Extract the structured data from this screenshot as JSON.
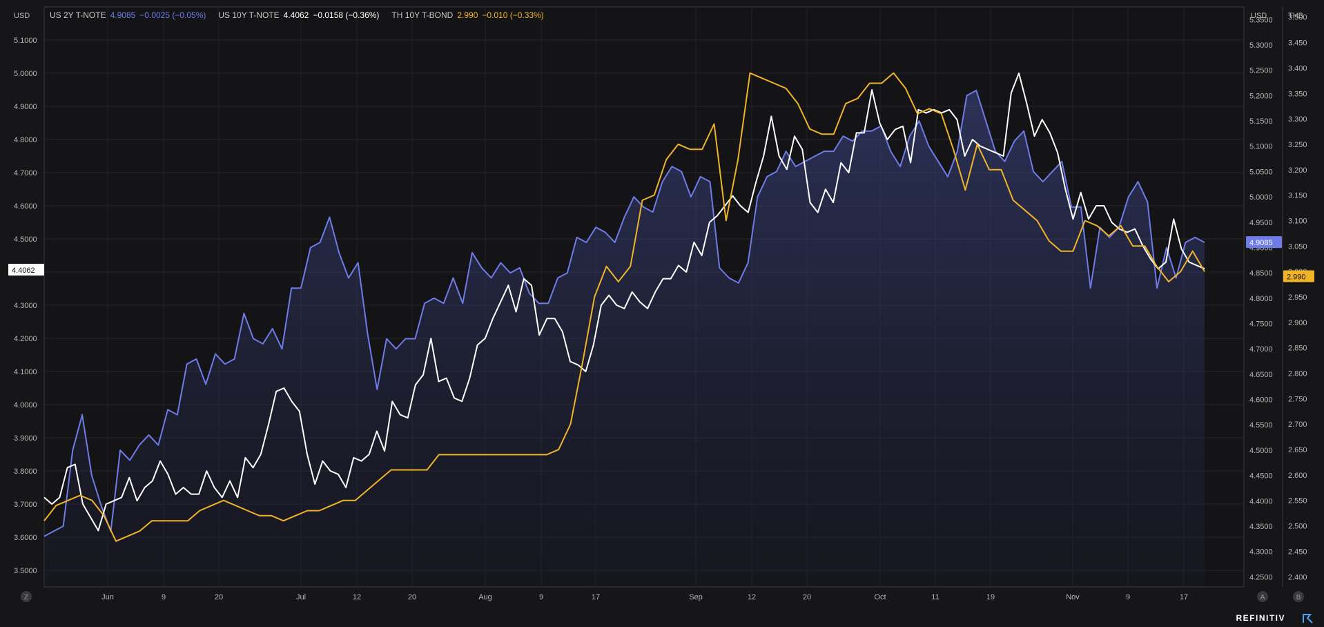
{
  "left_axis_unit": "USD",
  "right_axis_units": [
    "USD",
    "THB"
  ],
  "zoom_buttons": [
    "Z",
    "A",
    "B"
  ],
  "brand": "REFINITIV",
  "legend": [
    {
      "name": "US 2Y T-NOTE",
      "value": "4.9085",
      "change": "−0.0025 (−0.05%)",
      "color": "#6f7ce8"
    },
    {
      "name": "US 10Y T-NOTE",
      "value": "4.4062",
      "change": "−0.0158 (−0.36%)",
      "color": "#ffffff"
    },
    {
      "name": "TH 10Y T-BOND",
      "value": "2.990",
      "change": "−0.010 (−0.33%)",
      "color": "#f0b429"
    }
  ],
  "chart_data": {
    "type": "line",
    "x_labels": [
      "Jun",
      "9",
      "20",
      "Jul",
      "12",
      "20",
      "Aug",
      "9",
      "17",
      "Sep",
      "12",
      "20",
      "Oct",
      "11",
      "19",
      "Nov",
      "9",
      "17"
    ],
    "left_axis": {
      "unit": "USD",
      "ylim": [
        3.45,
        5.2
      ],
      "ticks": [
        "3.5000",
        "3.6000",
        "3.7000",
        "3.8000",
        "3.9000",
        "4.0000",
        "4.1000",
        "4.2000",
        "4.3000",
        "4.4000",
        "4.5000",
        "4.6000",
        "4.7000",
        "4.8000",
        "4.9000",
        "5.0000",
        "5.1000"
      ]
    },
    "right_axis_usd": {
      "unit": "USD",
      "ylim": [
        4.23,
        5.375
      ],
      "ticks": [
        "4.2500",
        "4.3000",
        "4.3500",
        "4.4000",
        "4.4500",
        "4.5000",
        "4.5500",
        "4.6000",
        "4.6500",
        "4.7000",
        "4.7500",
        "4.8000",
        "4.8500",
        "4.9000",
        "4.9500",
        "5.0000",
        "5.0500",
        "5.1000",
        "5.1500",
        "5.2000",
        "5.2500",
        "5.3000",
        "5.3500"
      ]
    },
    "right_axis_thb": {
      "unit": "THB",
      "ylim": [
        2.38,
        3.52
      ],
      "ticks": [
        "2.400",
        "2.450",
        "2.500",
        "2.550",
        "2.600",
        "2.650",
        "2.700",
        "2.750",
        "2.800",
        "2.850",
        "2.900",
        "2.950",
        "3.000",
        "3.050",
        "3.100",
        "3.150",
        "3.200",
        "3.250",
        "3.300",
        "3.350",
        "3.400",
        "3.450",
        "3.500"
      ]
    },
    "grid": true,
    "legend_position": "top-left",
    "series": [
      {
        "name": "US 2Y T-NOTE",
        "axis": "right_usd",
        "color": "#6f7ce8",
        "area": true,
        "last_label": "4.9085",
        "values": [
          4.33,
          4.34,
          4.35,
          4.5,
          4.57,
          4.45,
          4.39,
          4.34,
          4.5,
          4.48,
          4.51,
          4.53,
          4.51,
          4.58,
          4.57,
          4.67,
          4.68,
          4.63,
          4.69,
          4.67,
          4.68,
          4.77,
          4.72,
          4.71,
          4.74,
          4.7,
          4.82,
          4.82,
          4.9,
          4.91,
          4.96,
          4.89,
          4.84,
          4.87,
          4.73,
          4.62,
          4.72,
          4.7,
          4.72,
          4.72,
          4.79,
          4.8,
          4.79,
          4.84,
          4.79,
          4.89,
          4.86,
          4.84,
          4.87,
          4.85,
          4.86,
          4.81,
          4.79,
          4.79,
          4.84,
          4.85,
          4.92,
          4.91,
          4.94,
          4.93,
          4.91,
          4.96,
          5.0,
          4.98,
          4.97,
          5.03,
          5.06,
          5.05,
          5.0,
          5.04,
          5.03,
          4.86,
          4.84,
          4.83,
          4.87,
          5.0,
          5.04,
          5.05,
          5.09,
          5.06,
          5.07,
          5.08,
          5.09,
          5.09,
          5.12,
          5.11,
          5.13,
          5.13,
          5.14,
          5.09,
          5.06,
          5.12,
          5.15,
          5.1,
          5.07,
          5.04,
          5.09,
          5.2,
          5.21,
          5.15,
          5.09,
          5.07,
          5.11,
          5.13,
          5.05,
          5.03,
          5.05,
          5.07,
          4.98,
          4.98,
          4.82,
          4.94,
          4.92,
          4.94,
          5.0,
          5.03,
          4.99,
          4.82,
          4.9,
          4.84,
          4.91,
          4.92,
          4.91
        ]
      },
      {
        "name": "US 10Y T-NOTE",
        "axis": "left",
        "color": "#ffffff",
        "area": false,
        "last_label": "4.4062",
        "values": [
          3.72,
          3.7,
          3.72,
          3.81,
          3.82,
          3.7,
          3.66,
          3.62,
          3.7,
          3.71,
          3.72,
          3.78,
          3.71,
          3.75,
          3.77,
          3.83,
          3.79,
          3.73,
          3.75,
          3.73,
          3.73,
          3.8,
          3.75,
          3.72,
          3.77,
          3.72,
          3.84,
          3.81,
          3.85,
          3.94,
          4.04,
          4.05,
          4.01,
          3.98,
          3.85,
          3.76,
          3.83,
          3.8,
          3.79,
          3.75,
          3.84,
          3.83,
          3.85,
          3.92,
          3.86,
          4.01,
          3.97,
          3.96,
          4.06,
          4.09,
          4.2,
          4.07,
          4.08,
          4.02,
          4.01,
          4.08,
          4.18,
          4.2,
          4.26,
          4.31,
          4.36,
          4.28,
          4.38,
          4.36,
          4.21,
          4.26,
          4.26,
          4.22,
          4.13,
          4.12,
          4.1,
          4.18,
          4.3,
          4.33,
          4.3,
          4.29,
          4.34,
          4.31,
          4.29,
          4.34,
          4.38,
          4.38,
          4.42,
          4.4,
          4.49,
          4.45,
          4.55,
          4.57,
          4.6,
          4.63,
          4.6,
          4.58,
          4.67,
          4.75,
          4.87,
          4.75,
          4.71,
          4.81,
          4.77,
          4.61,
          4.58,
          4.65,
          4.61,
          4.73,
          4.7,
          4.82,
          4.82,
          4.95,
          4.85,
          4.8,
          4.83,
          4.84,
          4.73,
          4.89,
          4.88,
          4.89,
          4.88,
          4.89,
          4.86,
          4.75,
          4.8,
          4.78,
          4.77,
          4.76,
          4.75,
          4.94,
          5.0,
          4.91,
          4.81,
          4.86,
          4.82,
          4.76,
          4.65,
          4.56,
          4.64,
          4.56,
          4.6,
          4.6,
          4.55,
          4.53,
          4.52,
          4.53,
          4.48,
          4.44,
          4.41,
          4.43,
          4.56,
          4.47,
          4.43,
          4.42,
          4.41
        ]
      },
      {
        "name": "TH 10Y T-BOND",
        "axis": "right_thb",
        "color": "#f0b429",
        "area": false,
        "last_label": "2.990",
        "values": [
          2.51,
          2.54,
          2.55,
          2.56,
          2.55,
          2.52,
          2.47,
          2.48,
          2.49,
          2.51,
          2.51,
          2.51,
          2.51,
          2.53,
          2.54,
          2.55,
          2.54,
          2.53,
          2.52,
          2.52,
          2.51,
          2.52,
          2.53,
          2.53,
          2.54,
          2.55,
          2.55,
          2.57,
          2.59,
          2.61,
          2.61,
          2.61,
          2.61,
          2.64,
          2.64,
          2.64,
          2.64,
          2.64,
          2.64,
          2.64,
          2.64,
          2.64,
          2.64,
          2.65,
          2.7,
          2.82,
          2.95,
          3.01,
          2.98,
          3.01,
          3.14,
          3.15,
          3.22,
          3.25,
          3.24,
          3.24,
          3.29,
          3.1,
          3.22,
          3.39,
          3.38,
          3.37,
          3.36,
          3.33,
          3.28,
          3.27,
          3.27,
          3.33,
          3.34,
          3.37,
          3.37,
          3.39,
          3.36,
          3.31,
          3.32,
          3.31,
          3.24,
          3.16,
          3.25,
          3.2,
          3.2,
          3.14,
          3.12,
          3.1,
          3.06,
          3.04,
          3.04,
          3.1,
          3.09,
          3.07,
          3.09,
          3.05,
          3.05,
          3.01,
          2.98,
          3.0,
          3.04,
          3.0
        ]
      }
    ]
  }
}
